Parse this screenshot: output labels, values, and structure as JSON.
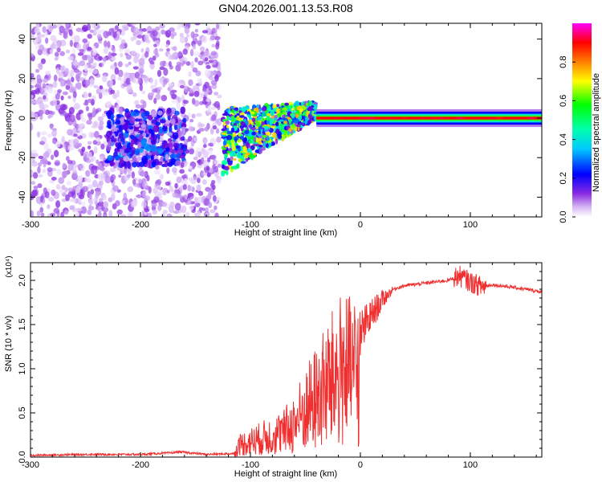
{
  "title": "GN04.2026.001.13.53.R08",
  "chart_data": [
    {
      "type": "heatmap",
      "xlabel": "Height of straight line (km)",
      "ylabel": "Frequency (Hz)",
      "xlim": [
        -300,
        165
      ],
      "ylim": [
        -50,
        48
      ],
      "xticks": [
        -300,
        -200,
        -100,
        0,
        100
      ],
      "yticks": [
        -40,
        -20,
        0,
        20,
        40
      ],
      "colorbar": {
        "label": "Normalized spectral amplitude",
        "range": [
          0,
          1
        ],
        "ticks": [
          0.0,
          0.2,
          0.4,
          0.6,
          0.8
        ],
        "colormap": [
          "#ffffff",
          "#c79cf2",
          "#6e00d8",
          "#0000ff",
          "#00c0ff",
          "#00ffc0",
          "#00ff00",
          "#ffff00",
          "#ff8000",
          "#ff0000",
          "#ff00ff"
        ]
      },
      "regions": [
        {
          "x_range": [
            -300,
            -128
          ],
          "freq_spread": [
            -50,
            48
          ],
          "amplitude": 0.12,
          "note_value": "broadband scatter"
        },
        {
          "x_range": [
            -230,
            -160
          ],
          "freq_center": -10,
          "amplitude": 0.2
        },
        {
          "x_range": [
            -125,
            -40
          ],
          "freq_center_start": -12,
          "freq_center_end": 4,
          "amplitude": 0.45
        },
        {
          "x_range": [
            -40,
            165
          ],
          "freq_center": 0,
          "amplitude": 0.9
        }
      ]
    },
    {
      "type": "line",
      "xlabel": "Height of straight line (km)",
      "ylabel": "SNR (10 * v/v)",
      "yscale_label": "(x10⁴)",
      "xlim": [
        -300,
        165
      ],
      "ylim": [
        0,
        2.2
      ],
      "xticks": [
        -300,
        -200,
        -100,
        0,
        100
      ],
      "yticks": [
        0.0,
        0.5,
        1.0,
        1.5,
        2.0
      ],
      "series": [
        {
          "color": "#f03030",
          "x": [
            -300,
            -250,
            -200,
            -170,
            -165,
            -140,
            -115,
            -110,
            -100,
            -90,
            -80,
            -70,
            -60,
            -50,
            -40,
            -30,
            -20,
            -15,
            -10,
            0,
            10,
            20,
            30,
            40,
            60,
            80,
            90,
            100,
            110,
            120,
            140,
            165
          ],
          "y": [
            0.02,
            0.03,
            0.03,
            0.05,
            0.06,
            0.03,
            0.04,
            0.2,
            0.25,
            0.3,
            0.35,
            0.4,
            0.55,
            0.75,
            0.95,
            1.15,
            1.35,
            1.45,
            1.35,
            1.4,
            1.6,
            1.78,
            1.9,
            1.94,
            1.97,
            2.0,
            2.05,
            1.98,
            1.93,
            1.95,
            1.92,
            1.87
          ]
        }
      ]
    }
  ]
}
